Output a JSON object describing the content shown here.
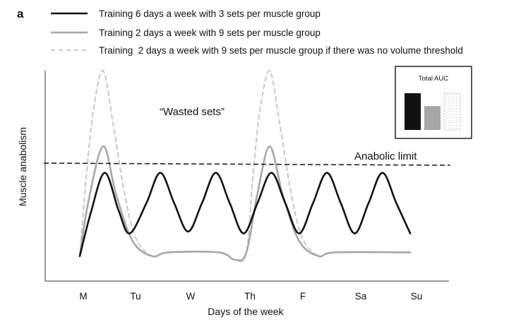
{
  "panel_label": "a",
  "legend": [
    {
      "label": "Training 6 days a week with 3 sets per muscle group",
      "style": "solid-black"
    },
    {
      "label": "Training 2 days a week with 9 sets per muscle group",
      "style": "solid-grey"
    },
    {
      "label": "Training  2 days a week with 9 sets per muscle group if there was no volume threshold",
      "style": "dashed-lightgrey"
    }
  ],
  "colors": {
    "six_day": "#111111",
    "two_day": "#a6a6a6",
    "no_threshold": "#c8c8c8",
    "limit": "#222222"
  },
  "annotations": {
    "wasted_sets": "“Wasted sets”",
    "anabolic_limit": "Anabolic limit"
  },
  "axes": {
    "x_label": "Days of the week",
    "y_label": "Muscle anabolism",
    "x_ticks": [
      "M",
      "Tu",
      "W",
      "Th",
      "F",
      "Sa",
      "Su"
    ]
  },
  "inset": {
    "title": "Total AUC",
    "bars": [
      {
        "series": "six_day",
        "relative_value": 1.0
      },
      {
        "series": "two_day",
        "relative_value": 0.65
      },
      {
        "series": "no_threshold",
        "relative_value": 1.0
      }
    ]
  },
  "chart_data": {
    "type": "line",
    "title": "",
    "xlabel": "Days of the week",
    "ylabel": "Muscle anabolism",
    "x_ticks": [
      "M",
      "Tu",
      "W",
      "Th",
      "F",
      "Sa",
      "Su"
    ],
    "xlim": [
      0,
      6.6
    ],
    "ylim": [
      0,
      1
    ],
    "anabolic_limit": 0.6,
    "series": [
      {
        "name": "Training 6 days a week with 3 sets per muscle group",
        "key": "six_day",
        "points": [
          [
            0,
            0.02
          ],
          [
            0.2,
            0.25
          ],
          [
            0.45,
            0.46
          ],
          [
            0.7,
            0.26
          ],
          [
            0.9,
            0.14
          ],
          [
            1.2,
            0.3
          ],
          [
            1.45,
            0.46
          ],
          [
            1.7,
            0.3
          ],
          [
            1.95,
            0.15
          ],
          [
            2.2,
            0.3
          ],
          [
            2.45,
            0.46
          ],
          [
            2.7,
            0.3
          ],
          [
            2.95,
            0.14
          ],
          [
            3.2,
            0.3
          ],
          [
            3.45,
            0.46
          ],
          [
            3.7,
            0.3
          ],
          [
            3.95,
            0.14
          ],
          [
            4.2,
            0.3
          ],
          [
            4.45,
            0.46
          ],
          [
            4.7,
            0.3
          ],
          [
            4.95,
            0.14
          ],
          [
            5.2,
            0.3
          ],
          [
            5.45,
            0.46
          ],
          [
            5.7,
            0.3
          ],
          [
            5.95,
            0.14
          ]
        ]
      },
      {
        "name": "Training 2 days a week with 9 sets per muscle group",
        "key": "two_day",
        "points": [
          [
            0,
            0.02
          ],
          [
            0.15,
            0.3
          ],
          [
            0.42,
            0.6
          ],
          [
            0.65,
            0.35
          ],
          [
            0.95,
            0.1
          ],
          [
            1.3,
            0.02
          ],
          [
            1.6,
            0.04
          ],
          [
            2.5,
            0.04
          ],
          [
            2.8,
            0.0
          ],
          [
            3.0,
            0.04
          ],
          [
            3.2,
            0.35
          ],
          [
            3.42,
            0.6
          ],
          [
            3.65,
            0.35
          ],
          [
            3.95,
            0.1
          ],
          [
            4.3,
            0.02
          ],
          [
            4.6,
            0.04
          ],
          [
            5.95,
            0.04
          ]
        ]
      },
      {
        "name": "Training  2 days a week with 9 sets per muscle group if there was no volume threshold",
        "key": "no_threshold",
        "points": [
          [
            0,
            0.02
          ],
          [
            0.12,
            0.45
          ],
          [
            0.25,
            0.8
          ],
          [
            0.42,
            1.0
          ],
          [
            0.6,
            0.72
          ],
          [
            0.8,
            0.36
          ],
          [
            1.0,
            0.12
          ],
          [
            1.3,
            0.02
          ],
          [
            1.6,
            0.04
          ],
          [
            2.5,
            0.04
          ],
          [
            2.8,
            0.0
          ],
          [
            3.0,
            0.04
          ],
          [
            3.12,
            0.45
          ],
          [
            3.25,
            0.8
          ],
          [
            3.42,
            1.0
          ],
          [
            3.6,
            0.72
          ],
          [
            3.8,
            0.36
          ],
          [
            4.0,
            0.12
          ],
          [
            4.3,
            0.02
          ],
          [
            4.6,
            0.04
          ],
          [
            5.95,
            0.04
          ]
        ]
      }
    ]
  }
}
